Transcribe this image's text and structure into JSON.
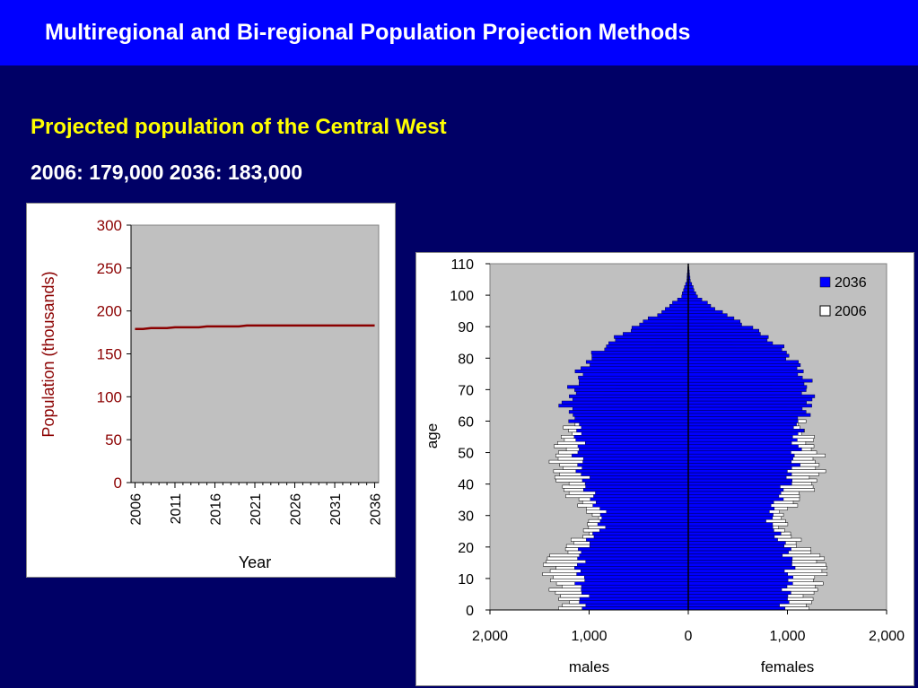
{
  "header": {
    "title": "Multiregional and Bi-regional Population Projection Methods"
  },
  "subtitle": "Projected population of the Central West",
  "summary": "2006: 179,000  2036: 183,000",
  "colors": {
    "header_bg": "#0000ff",
    "page_bg": "#000066",
    "subtitle": "#ffff00",
    "plot_bg": "#c0c0c0",
    "line_series": "#8b0000",
    "axis_label_red": "#8b0000",
    "series_2036": "#0000ff",
    "series_2006": "#ffffff"
  },
  "chart_data": [
    {
      "type": "line",
      "title": "",
      "xlabel": "Year",
      "ylabel": "Population (thousands)",
      "ylim": [
        0,
        300
      ],
      "yticks": [
        "0",
        "50",
        "100",
        "150",
        "200",
        "250",
        "300"
      ],
      "xticks": [
        "2006",
        "2011",
        "2016",
        "2021",
        "2026",
        "2031",
        "2036"
      ],
      "grid": false,
      "series": [
        {
          "x": [
            2006,
            2007,
            2008,
            2009,
            2010,
            2011,
            2012,
            2013,
            2014,
            2015,
            2016,
            2017,
            2018,
            2019,
            2020,
            2021,
            2022,
            2023,
            2024,
            2025,
            2026,
            2027,
            2028,
            2029,
            2030,
            2031,
            2032,
            2033,
            2034,
            2035,
            2036
          ],
          "values": [
            179,
            179,
            180,
            180,
            180,
            181,
            181,
            181,
            181,
            182,
            182,
            182,
            182,
            182,
            183,
            183,
            183,
            183,
            183,
            183,
            183,
            183,
            183,
            183,
            183,
            183,
            183,
            183,
            183,
            183,
            183
          ]
        }
      ]
    },
    {
      "type": "bar",
      "orientation": "horizontal",
      "title": "",
      "xlabel_left": "males",
      "xlabel_right": "females",
      "ylabel": "age",
      "xlim": [
        -2000,
        2000
      ],
      "ylim": [
        0,
        110
      ],
      "xticks": [
        "2,000",
        "1,000",
        "0",
        "1,000",
        "2,000"
      ],
      "yticks": [
        "0",
        "10",
        "20",
        "30",
        "40",
        "50",
        "60",
        "70",
        "80",
        "90",
        "100",
        "110"
      ],
      "legend_position": "top-right",
      "grid": false,
      "series": [
        {
          "name": "2036",
          "key": "y2036",
          "ages": [
            0,
            5,
            10,
            15,
            20,
            25,
            30,
            35,
            40,
            45,
            50,
            55,
            60,
            65,
            70,
            75,
            80,
            85,
            90,
            95,
            100,
            105,
            110
          ],
          "males": [
            1050,
            1070,
            1090,
            1110,
            1050,
            900,
            860,
            960,
            1040,
            1090,
            1110,
            1100,
            1130,
            1250,
            1150,
            1100,
            1000,
            800,
            560,
            270,
            70,
            15,
            2
          ],
          "females": [
            980,
            1000,
            1020,
            1040,
            980,
            860,
            820,
            900,
            1000,
            1050,
            1080,
            1090,
            1110,
            1230,
            1200,
            1160,
            1050,
            880,
            640,
            330,
            90,
            20,
            3
          ]
        },
        {
          "name": "2006",
          "key": "y2006",
          "ages": [
            0,
            5,
            10,
            15,
            20,
            25,
            30,
            35,
            40,
            45,
            50,
            55,
            60,
            65,
            70,
            75,
            80,
            85,
            90,
            95,
            100,
            105,
            110
          ],
          "males": [
            1240,
            1320,
            1380,
            1440,
            1200,
            1020,
            960,
            1150,
            1290,
            1330,
            1320,
            1260,
            1140,
            960,
            760,
            610,
            480,
            300,
            150,
            50,
            10,
            2,
            0
          ],
          "females": [
            1180,
            1260,
            1330,
            1390,
            1150,
            980,
            940,
            1110,
            1270,
            1320,
            1290,
            1210,
            1110,
            950,
            810,
            700,
            600,
            430,
            250,
            90,
            20,
            4,
            0
          ]
        }
      ]
    }
  ]
}
